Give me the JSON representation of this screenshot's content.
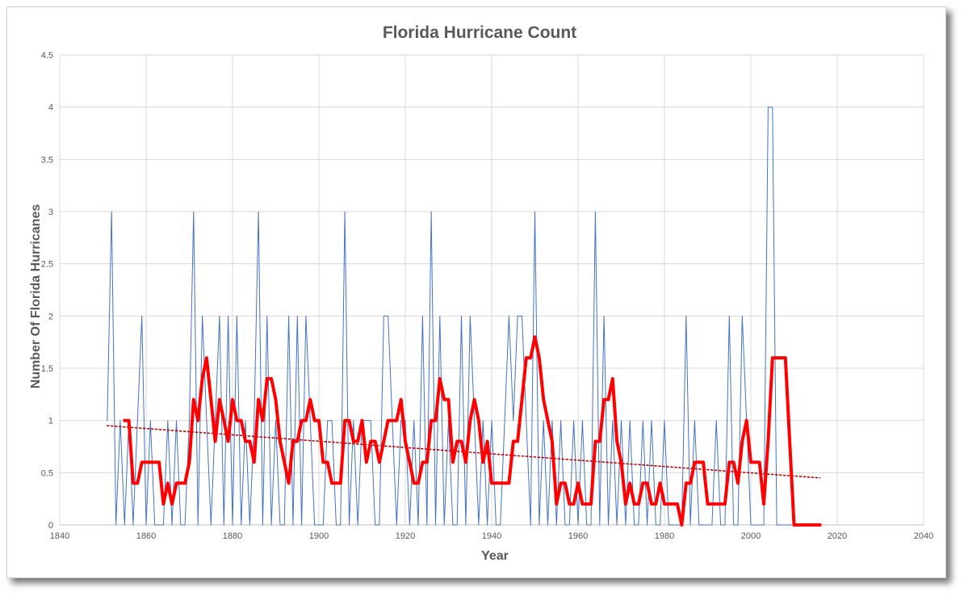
{
  "chart_data": {
    "type": "line",
    "title": "Florida Hurricane Count",
    "xlabel": "Year",
    "ylabel": "Number Of Florida Hurricanes",
    "xlim": [
      1840,
      2040
    ],
    "ylim": [
      0,
      4.5
    ],
    "x_ticks": [
      "1840",
      "1860",
      "1880",
      "1900",
      "1920",
      "1940",
      "1960",
      "1980",
      "2000",
      "2020",
      "2040"
    ],
    "y_ticks": [
      "0",
      "0.5",
      "1",
      "1.5",
      "2",
      "2.5",
      "3",
      "3.5",
      "4",
      "4.5"
    ],
    "grid": true,
    "legend": "none",
    "series": [
      {
        "color": "#4472c4",
        "style": "thin-solid",
        "x": [
          1851,
          1852,
          1853,
          1854,
          1855,
          1856,
          1857,
          1858,
          1859,
          1860,
          1861,
          1862,
          1863,
          1864,
          1865,
          1866,
          1867,
          1868,
          1869,
          1870,
          1871,
          1872,
          1873,
          1874,
          1875,
          1876,
          1877,
          1878,
          1879,
          1880,
          1881,
          1882,
          1883,
          1884,
          1885,
          1886,
          1887,
          1888,
          1889,
          1890,
          1891,
          1892,
          1893,
          1894,
          1895,
          1896,
          1897,
          1898,
          1899,
          1900,
          1901,
          1902,
          1903,
          1904,
          1905,
          1906,
          1907,
          1908,
          1909,
          1910,
          1911,
          1912,
          1913,
          1914,
          1915,
          1916,
          1917,
          1918,
          1919,
          1920,
          1921,
          1922,
          1923,
          1924,
          1925,
          1926,
          1927,
          1928,
          1929,
          1930,
          1931,
          1932,
          1933,
          1934,
          1935,
          1936,
          1937,
          1938,
          1939,
          1940,
          1941,
          1942,
          1943,
          1944,
          1945,
          1946,
          1947,
          1948,
          1949,
          1950,
          1951,
          1952,
          1953,
          1954,
          1955,
          1956,
          1957,
          1958,
          1959,
          1960,
          1961,
          1962,
          1963,
          1964,
          1965,
          1966,
          1967,
          1968,
          1969,
          1970,
          1971,
          1972,
          1973,
          1974,
          1975,
          1976,
          1977,
          1978,
          1979,
          1980,
          1981,
          1982,
          1983,
          1984,
          1985,
          1986,
          1987,
          1988,
          1989,
          1990,
          1991,
          1992,
          1993,
          1994,
          1995,
          1996,
          1997,
          1998,
          1999,
          2000,
          2001,
          2002,
          2003,
          2004,
          2005,
          2006,
          2007,
          2008,
          2009,
          2010,
          2011,
          2012,
          2013,
          2014,
          2015,
          2016
        ],
        "values": [
          1,
          3,
          0,
          1,
          0,
          1,
          0,
          1,
          2,
          0,
          1,
          0,
          0,
          0,
          1,
          0,
          1,
          0,
          0,
          1,
          3,
          0,
          2,
          1,
          0,
          1,
          2,
          0,
          2,
          0,
          2,
          0,
          1,
          0,
          1,
          3,
          0,
          2,
          0,
          1,
          0,
          0,
          2,
          0,
          2,
          0,
          2,
          1,
          0,
          0,
          0,
          1,
          1,
          0,
          0,
          3,
          0,
          1,
          0,
          1,
          1,
          1,
          0,
          0,
          2,
          2,
          1,
          0,
          1,
          1,
          0,
          1,
          0,
          2,
          0,
          3,
          0,
          2,
          0,
          1,
          0,
          0,
          2,
          0,
          2,
          1,
          0,
          1,
          0,
          1,
          0,
          0,
          1,
          2,
          1,
          2,
          2,
          1,
          0,
          3,
          0,
          1,
          0,
          1,
          0,
          1,
          0,
          0,
          1,
          0,
          1,
          0,
          0,
          3,
          0,
          2,
          0,
          1,
          0,
          1,
          0,
          1,
          0,
          0,
          1,
          0,
          1,
          0,
          0,
          1,
          0,
          0,
          0,
          0,
          2,
          0,
          1,
          0,
          0,
          0,
          0,
          1,
          0,
          0,
          2,
          0,
          0,
          2,
          1,
          0,
          0,
          0,
          0,
          4,
          4,
          0,
          0,
          0,
          0,
          0,
          0,
          0,
          0,
          0,
          0,
          0
        ]
      },
      {
        "color": "#ff0000",
        "style": "thick-solid",
        "x": [
          1855,
          1856,
          1857,
          1858,
          1859,
          1860,
          1861,
          1862,
          1863,
          1864,
          1865,
          1866,
          1867,
          1868,
          1869,
          1870,
          1871,
          1872,
          1873,
          1874,
          1875,
          1876,
          1877,
          1878,
          1879,
          1880,
          1881,
          1882,
          1883,
          1884,
          1885,
          1886,
          1887,
          1888,
          1889,
          1890,
          1891,
          1892,
          1893,
          1894,
          1895,
          1896,
          1897,
          1898,
          1899,
          1900,
          1901,
          1902,
          1903,
          1904,
          1905,
          1906,
          1907,
          1908,
          1909,
          1910,
          1911,
          1912,
          1913,
          1914,
          1915,
          1916,
          1917,
          1918,
          1919,
          1920,
          1921,
          1922,
          1923,
          1924,
          1925,
          1926,
          1927,
          1928,
          1929,
          1930,
          1931,
          1932,
          1933,
          1934,
          1935,
          1936,
          1937,
          1938,
          1939,
          1940,
          1941,
          1942,
          1943,
          1944,
          1945,
          1946,
          1947,
          1948,
          1949,
          1950,
          1951,
          1952,
          1953,
          1954,
          1955,
          1956,
          1957,
          1958,
          1959,
          1960,
          1961,
          1962,
          1963,
          1964,
          1965,
          1966,
          1967,
          1968,
          1969,
          1970,
          1971,
          1972,
          1973,
          1974,
          1975,
          1976,
          1977,
          1978,
          1979,
          1980,
          1981,
          1982,
          1983,
          1984,
          1985,
          1986,
          1987,
          1988,
          1989,
          1990,
          1991,
          1992,
          1993,
          1994,
          1995,
          1996,
          1997,
          1998,
          1999,
          2000,
          2001,
          2002,
          2003,
          2004,
          2005,
          2006,
          2007,
          2008,
          2009,
          2010,
          2011,
          2012,
          2013,
          2014,
          2015,
          2016
        ],
        "values": [
          1,
          1,
          0.4,
          0.4,
          0.6,
          0.6,
          0.6,
          0.6,
          0.6,
          0.2,
          0.4,
          0.2,
          0.4,
          0.4,
          0.4,
          0.6,
          1.2,
          1,
          1.4,
          1.6,
          1.2,
          0.8,
          1.2,
          1,
          0.8,
          1.2,
          1,
          1,
          0.8,
          0.8,
          0.6,
          1.2,
          1,
          1.4,
          1.4,
          1.2,
          0.8,
          0.6,
          0.4,
          0.8,
          0.8,
          1,
          1,
          1.2,
          1,
          1,
          0.6,
          0.6,
          0.4,
          0.4,
          0.4,
          1,
          1,
          0.8,
          0.8,
          1,
          0.6,
          0.8,
          0.8,
          0.6,
          0.8,
          1,
          1,
          1,
          1.2,
          0.8,
          0.6,
          0.4,
          0.4,
          0.6,
          0.6,
          1,
          1,
          1.4,
          1.2,
          1.2,
          0.6,
          0.8,
          0.8,
          0.6,
          1,
          1.2,
          1,
          0.6,
          0.8,
          0.4,
          0.4,
          0.4,
          0.4,
          0.4,
          0.8,
          0.8,
          1.2,
          1.6,
          1.6,
          1.8,
          1.6,
          1.2,
          1,
          0.8,
          0.2,
          0.4,
          0.4,
          0.2,
          0.2,
          0.4,
          0.2,
          0.2,
          0.2,
          0.8,
          0.8,
          1.2,
          1.2,
          1.4,
          0.8,
          0.6,
          0.2,
          0.4,
          0.2,
          0.2,
          0.4,
          0.4,
          0.2,
          0.2,
          0.4,
          0.2,
          0.2,
          0.2,
          0.2,
          0,
          0.4,
          0.4,
          0.6,
          0.6,
          0.6,
          0.2,
          0.2,
          0.2,
          0.2,
          0.2,
          0.6,
          0.6,
          0.4,
          0.8,
          1,
          0.6,
          0.6,
          0.6,
          0.2,
          0.8,
          1.6,
          1.6,
          1.6,
          1.6,
          0.8,
          0,
          0,
          0,
          0,
          0,
          0,
          0
        ]
      },
      {
        "color": "#c00000",
        "style": "dotted-trendline",
        "x": [
          1851,
          2016
        ],
        "values": [
          0.95,
          0.45
        ]
      }
    ]
  }
}
